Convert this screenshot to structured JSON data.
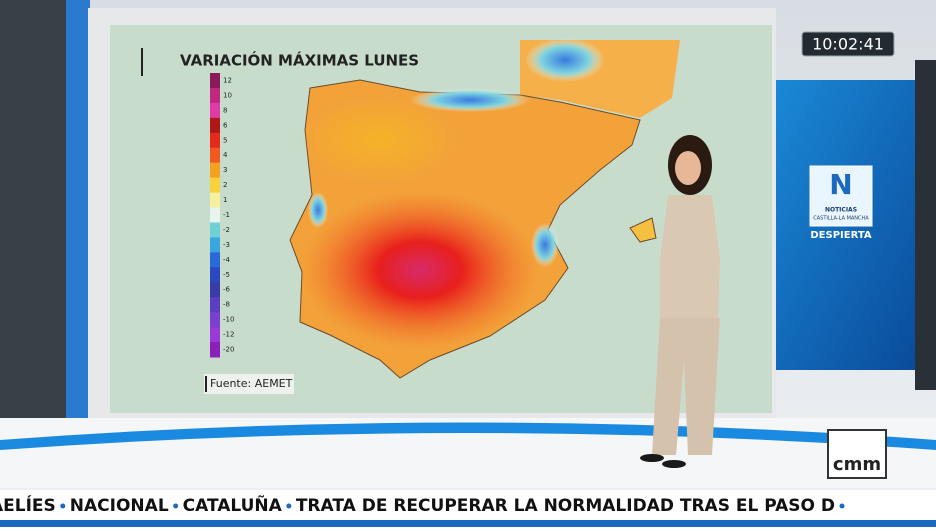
{
  "map": {
    "title": "VARIACIÓN MÁXIMAS LUNES",
    "source": "Fuente: AEMET",
    "legend": {
      "values": [
        12,
        10,
        8,
        6,
        5,
        4,
        3,
        2,
        1,
        -1,
        -2,
        -3,
        -4,
        -5,
        -6,
        -8,
        -10,
        -12,
        -20
      ],
      "colors": [
        "#8a1a5a",
        "#c0287e",
        "#e03aa8",
        "#b01818",
        "#e42a1c",
        "#f05a22",
        "#f5a020",
        "#f7d23a",
        "#f4f0a0",
        "#e8f4f0",
        "#6fd0d8",
        "#3aa6e0",
        "#2a6ad8",
        "#2a48c0",
        "#3a3aa8",
        "#5a40c0",
        "#7a40d0",
        "#9a38d8",
        "#8a20b8"
      ]
    }
  },
  "clock": "10:02:41",
  "logo": {
    "letter": "N",
    "line1": "NOTICIAS",
    "line2": "CASTILLA-LA MANCHA",
    "show": "DESPIERTA"
  },
  "channel": "cmm",
  "ticker": [
    "AELÍES",
    "NACIONAL",
    "CATALUÑA",
    "TRATA DE RECUPERAR LA NORMALIDAD TRAS EL PASO D"
  ]
}
